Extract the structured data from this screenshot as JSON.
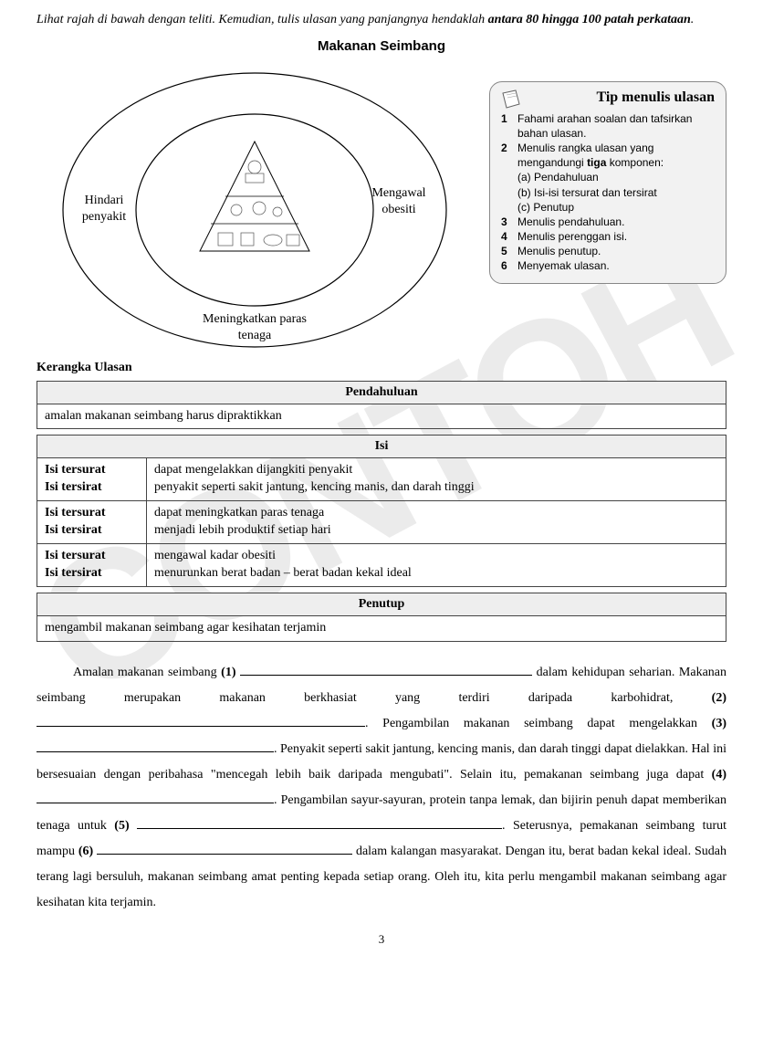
{
  "watermark": "CONTOH",
  "instruction_pre": "Lihat rajah di bawah dengan teliti. Kemudian, tulis ulasan yang panjangnya hendaklah ",
  "instruction_bold": "antara 80 hingga 100 patah perkataan",
  "instruction_post": ".",
  "diagram": {
    "title": "Makanan Seimbang",
    "left": "Hindari\npenyakit",
    "right": "Mengawal\nobesiti",
    "bottom": "Meningkatkan paras\ntenaga"
  },
  "tips": {
    "title": "Tip menulis ulasan",
    "items": [
      {
        "num": "1",
        "text": "Fahami arahan soalan dan tafsirkan bahan ulasan."
      },
      {
        "num": "2",
        "text": "Menulis rangka ulasan yang mengandungi tiga komponen:"
      },
      {
        "sub": "(a) Pendahuluan"
      },
      {
        "sub": "(b) Isi-isi tersurat dan tersirat"
      },
      {
        "sub": "(c) Penutup"
      },
      {
        "num": "3",
        "text": "Menulis pendahuluan."
      },
      {
        "num": "4",
        "text": "Menulis perenggan isi."
      },
      {
        "num": "5",
        "text": "Menulis penutup."
      },
      {
        "num": "6",
        "text": "Menyemak ulasan."
      }
    ]
  },
  "kerangka_label": "Kerangka Ulasan",
  "pendahuluan": {
    "header": "Pendahuluan",
    "body": "amalan makanan seimbang harus dipraktikkan"
  },
  "isi": {
    "header": "Isi",
    "label_tersurat": "Isi tersurat",
    "label_tersirat": "Isi tersirat",
    "rows": [
      {
        "tersurat": "dapat mengelakkan dijangkiti penyakit",
        "tersirat": "penyakit seperti sakit jantung, kencing manis, dan darah tinggi"
      },
      {
        "tersurat": "dapat meningkatkan paras tenaga",
        "tersirat": "menjadi lebih produktif setiap hari"
      },
      {
        "tersurat": "mengawal kadar obesiti",
        "tersirat": "menurunkan berat badan – berat badan kekal ideal"
      }
    ]
  },
  "penutup": {
    "header": "Penutup",
    "body": "mengambil makanan seimbang agar kesihatan terjamin"
  },
  "essay": {
    "p1a": "Amalan makanan seimbang ",
    "b1": "(1)",
    "p1b": " dalam kehidupan seharian. Makanan seimbang merupakan makanan berkhasiat yang terdiri daripada karbohidrat, ",
    "b2": "(2)",
    "p2b": ". Pengambilan makanan seimbang dapat mengelakkan ",
    "b3": "(3)",
    "p3b": ". Penyakit seperti sakit jantung, kencing manis, dan darah tinggi dapat dielakkan. Hal ini bersesuaian dengan peribahasa \"mencegah lebih baik daripada mengubati\". Selain itu, pemakanan seimbang juga dapat ",
    "b4": "(4)",
    "p4b": ". Pengambilan sayur-sayuran, protein tanpa lemak, dan bijirin penuh dapat memberikan tenaga untuk ",
    "b5": "(5)",
    "p5b": ". Seterusnya, pemakanan seimbang turut mampu ",
    "b6": "(6)",
    "p6b": " dalam kalangan masyarakat. Dengan itu, berat badan kekal ideal. Sudah terang lagi bersuluh, makanan seimbang amat penting kepada setiap orang. Oleh itu, kita perlu mengambil makanan seimbang agar kesihatan kita terjamin."
  },
  "fill_widths": {
    "f1": 320,
    "f2": 360,
    "f3": 260,
    "f4": 260,
    "f5": 400,
    "f6": 280
  },
  "page_number": "3"
}
